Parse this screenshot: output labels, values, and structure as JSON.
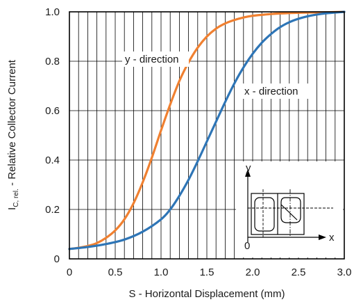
{
  "chart_data": {
    "type": "line",
    "ylabel_main": "I",
    "ylabel_sub": "C, rel.",
    "ylabel_rest": " - Relative Collector Current",
    "xlabel": "S - Horizontal Displacement (mm)",
    "xlim": [
      0,
      3.0
    ],
    "ylim": [
      0,
      1.0
    ],
    "x_ticks": [
      "0",
      "0.5",
      "1.0",
      "1.5",
      "2.0",
      "2.5",
      "3.0"
    ],
    "y_ticks": [
      "0",
      "0.2",
      "0.4",
      "0.6",
      "0.8",
      "1.0"
    ],
    "grid": true,
    "series": [
      {
        "name": "y - direction",
        "color": "#f08030",
        "x": [
          0,
          0.1,
          0.2,
          0.3,
          0.4,
          0.5,
          0.6,
          0.7,
          0.8,
          0.9,
          1.0,
          1.1,
          1.2,
          1.3,
          1.4,
          1.5,
          1.6,
          1.7,
          1.8,
          1.9,
          2.0,
          2.2,
          2.4,
          2.6,
          2.8,
          3.0
        ],
        "y": [
          0.04,
          0.045,
          0.052,
          0.064,
          0.085,
          0.115,
          0.16,
          0.225,
          0.31,
          0.41,
          0.52,
          0.625,
          0.72,
          0.795,
          0.855,
          0.9,
          0.932,
          0.953,
          0.967,
          0.977,
          0.984,
          0.991,
          0.995,
          0.997,
          0.998,
          1.0
        ]
      },
      {
        "name": "x - direction",
        "color": "#2e75b6",
        "x": [
          0,
          0.2,
          0.4,
          0.6,
          0.8,
          1.0,
          1.1,
          1.2,
          1.3,
          1.4,
          1.5,
          1.6,
          1.7,
          1.8,
          1.9,
          2.0,
          2.1,
          2.2,
          2.3,
          2.4,
          2.5,
          2.6,
          2.7,
          2.8,
          2.9,
          3.0
        ],
        "y": [
          0.04,
          0.048,
          0.06,
          0.078,
          0.11,
          0.16,
          0.2,
          0.255,
          0.32,
          0.395,
          0.475,
          0.555,
          0.635,
          0.71,
          0.775,
          0.83,
          0.875,
          0.91,
          0.938,
          0.958,
          0.972,
          0.982,
          0.989,
          0.994,
          0.997,
          1.0
        ]
      }
    ],
    "annotations": {
      "y_direction_label": "y - direction",
      "x_direction_label": "x - direction"
    },
    "inset": {
      "y_label": "y",
      "x_label": "x",
      "origin_label": "0"
    }
  }
}
